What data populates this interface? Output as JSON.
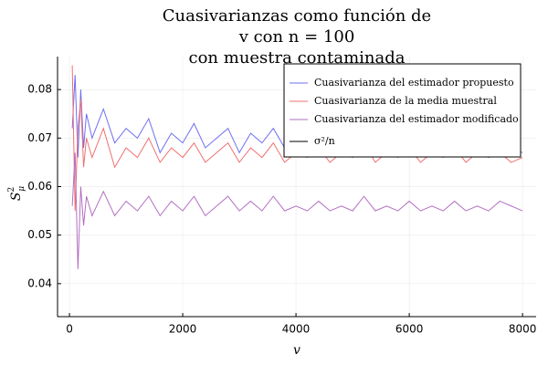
{
  "chart_data": {
    "type": "line",
    "title": [
      "Cuasivarianzas como función de",
      "v con n = 100",
      "con muestra contaminada"
    ],
    "x_label": "v",
    "y_label": {
      "base": "S",
      "sup": "2",
      "sub": "μ"
    },
    "x": [
      50,
      100,
      150,
      200,
      250,
      300,
      400,
      600,
      800,
      1000,
      1200,
      1400,
      1600,
      1800,
      2000,
      2200,
      2400,
      2600,
      2800,
      3000,
      3200,
      3400,
      3600,
      3800,
      4000,
      4200,
      4400,
      4600,
      4800,
      5000,
      5200,
      5400,
      5600,
      5800,
      6000,
      6200,
      6400,
      6600,
      6800,
      7000,
      7200,
      7400,
      7600,
      7800,
      8000
    ],
    "series": [
      {
        "name": "Cuasivarianza del estimador propuesto",
        "color": "#6f6ff2",
        "values": [
          0.072,
          0.083,
          0.066,
          0.08,
          0.068,
          0.075,
          0.07,
          0.076,
          0.069,
          0.072,
          0.07,
          0.074,
          0.067,
          0.071,
          0.069,
          0.073,
          0.068,
          0.07,
          0.072,
          0.067,
          0.071,
          0.069,
          0.072,
          0.068,
          0.07,
          0.069,
          0.071,
          0.068,
          0.07,
          0.069,
          0.072,
          0.068,
          0.07,
          0.069,
          0.071,
          0.068,
          0.07,
          0.069,
          0.071,
          0.068,
          0.07,
          0.069,
          0.07,
          0.068,
          0.067
        ]
      },
      {
        "name": "Cuasivarianza de la media muestral",
        "color": "#f07070",
        "values": [
          0.085,
          0.055,
          0.072,
          0.078,
          0.064,
          0.07,
          0.066,
          0.072,
          0.064,
          0.068,
          0.066,
          0.07,
          0.065,
          0.068,
          0.066,
          0.069,
          0.065,
          0.067,
          0.069,
          0.065,
          0.068,
          0.066,
          0.069,
          0.065,
          0.067,
          0.066,
          0.068,
          0.065,
          0.067,
          0.066,
          0.069,
          0.065,
          0.067,
          0.066,
          0.068,
          0.065,
          0.067,
          0.066,
          0.068,
          0.065,
          0.067,
          0.066,
          0.067,
          0.065,
          0.066
        ]
      },
      {
        "name": "Cuasivarianza del estimador modificado",
        "color": "#b26fc2",
        "values": [
          0.056,
          0.067,
          0.043,
          0.06,
          0.052,
          0.058,
          0.054,
          0.059,
          0.054,
          0.057,
          0.055,
          0.058,
          0.054,
          0.057,
          0.055,
          0.058,
          0.054,
          0.056,
          0.058,
          0.055,
          0.057,
          0.055,
          0.058,
          0.055,
          0.056,
          0.055,
          0.057,
          0.055,
          0.056,
          0.055,
          0.058,
          0.055,
          0.056,
          0.055,
          0.057,
          0.055,
          0.056,
          0.055,
          0.057,
          0.055,
          0.056,
          0.055,
          0.057,
          0.056,
          0.055
        ]
      },
      {
        "name": "σ²/n",
        "color": "#000000"
      }
    ],
    "xlim": [
      -210,
      8240
    ],
    "ylim": [
      0.0332,
      0.0868
    ],
    "xticks": [
      0,
      2000,
      4000,
      6000,
      8000
    ],
    "yticks": [
      0.04,
      0.05,
      0.06,
      0.07,
      0.08
    ],
    "grid": true,
    "legend": "top-right"
  }
}
